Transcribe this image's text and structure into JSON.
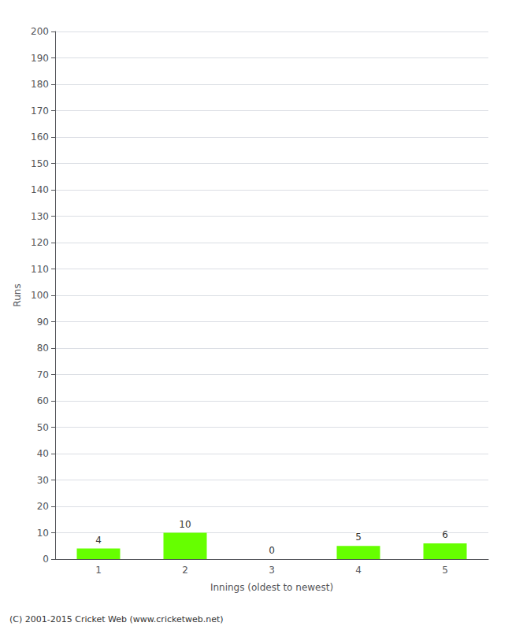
{
  "chart_data": {
    "type": "bar",
    "xlabel": "Innings (oldest to newest)",
    "ylabel": "Runs",
    "categories": [
      "1",
      "2",
      "3",
      "4",
      "5"
    ],
    "values": [
      4,
      10,
      0,
      5,
      6
    ],
    "color": "#66ff00",
    "ylim": [
      0,
      200
    ],
    "yticks": [
      0,
      10,
      20,
      30,
      40,
      50,
      60,
      70,
      80,
      90,
      100,
      110,
      120,
      130,
      140,
      150,
      160,
      170,
      180,
      190,
      200
    ],
    "grid": true,
    "data_labels": true,
    "annotations": [
      "(C) 2001-2015 Cricket Web (www.cricketweb.net)"
    ]
  }
}
